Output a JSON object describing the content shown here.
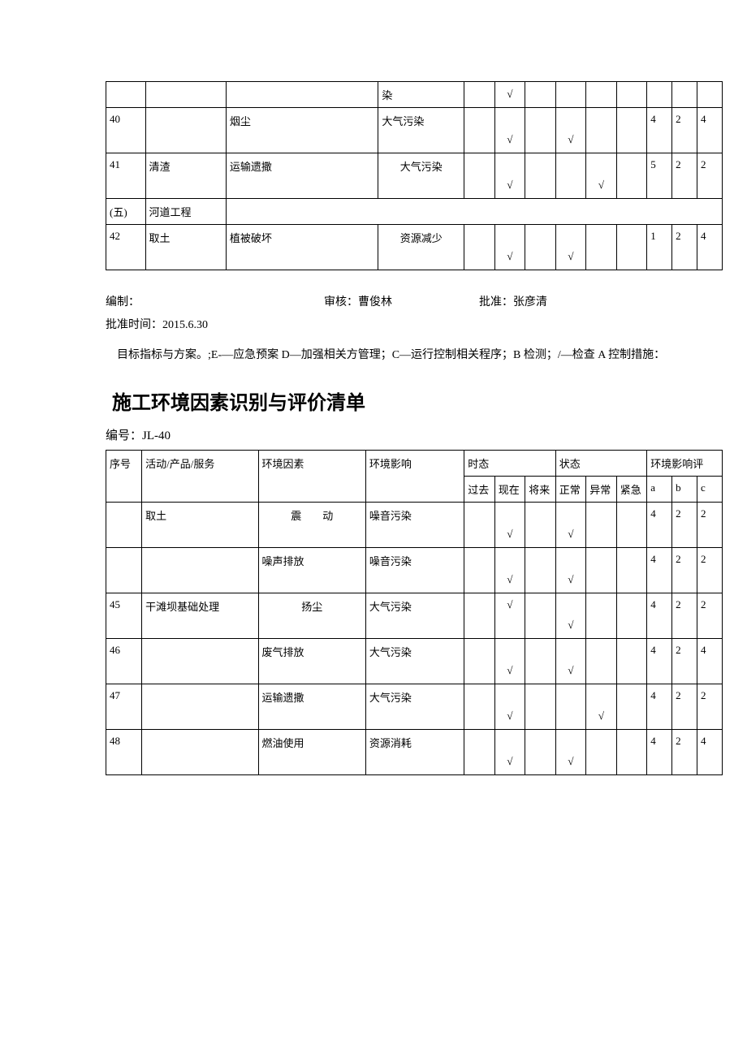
{
  "table1": {
    "rows": [
      {
        "seq": "",
        "act": "",
        "factor": "",
        "impact": "染",
        "t1": "",
        "t2": "√",
        "t3": "",
        "s1": "",
        "s2": "",
        "s3": "",
        "a": "",
        "b": "",
        "c": ""
      },
      {
        "seq": "40",
        "act": "",
        "factor": "烟尘",
        "impact": "大气污染",
        "t1": "",
        "t2": "√",
        "t3": "",
        "s1": "√",
        "s2": "",
        "s3": "",
        "a": "4",
        "b": "2",
        "c": "4"
      },
      {
        "seq": "41",
        "act": "清渣",
        "factor": "运输遗撒",
        "impact": "大气污染",
        "t1": "",
        "t2": "√",
        "t3": "",
        "s1": "",
        "s2": "√",
        "s3": "",
        "a": "5",
        "b": "2",
        "c": "2"
      },
      {
        "seq": "(五)",
        "act": "河道工程",
        "section": true
      },
      {
        "seq": "42",
        "act": "取土",
        "factor": "植被破坏",
        "impact": "资源减少",
        "t1": "",
        "t2": "√",
        "t3": "",
        "s1": "√",
        "s2": "",
        "s3": "",
        "a": "1",
        "b": "2",
        "c": "4"
      }
    ]
  },
  "meta": {
    "bianzhi_label": "编制：",
    "shenhe_label": "审核：",
    "shenhe_val": "曹俊林",
    "pizhun_label": "批准：",
    "pizhun_val": "张彦清",
    "time_label": "批准时间：",
    "time_val": "2015.6.30"
  },
  "note": "目标指标与方案。;E-—应急预案 D—加强相关方管理；C—运行控制相关程序；B 检测；/—检查 A 控制措施：",
  "title": "施工环境因素识别与评价清单",
  "subno_label": "编号：",
  "subno_val": "JL-40",
  "table2": {
    "head": {
      "seq": "序号",
      "act": "活动/产品/服务",
      "factor": "环境因素",
      "impact": "环境影响",
      "time": "时态",
      "state": "状态",
      "eval": "环境影响评"
    },
    "sub": {
      "t1": "过去",
      "t2": "现在",
      "t3": "将来",
      "s1": "正常",
      "s2": "异常",
      "s3": "紧急",
      "a": "a",
      "b": "b",
      "c": "c"
    },
    "rows": [
      {
        "seq": "",
        "act": "取土",
        "factor": "震　　动",
        "impact": "噪音污染",
        "t1": "",
        "t2": "√",
        "t3": "",
        "s1": "√",
        "s2": "",
        "s3": "",
        "a": "4",
        "b": "2",
        "c": "2"
      },
      {
        "seq": "",
        "act": "",
        "factor": "噪声排放",
        "impact": "噪音污染",
        "t1": "",
        "t2": "√",
        "t3": "",
        "s1": "√",
        "s2": "",
        "s3": "",
        "a": "4",
        "b": "2",
        "c": "2"
      },
      {
        "seq": "45",
        "act": "干滩坝基础处理",
        "factor": "扬尘",
        "impact": "大气污染",
        "t1": "",
        "t2": "√",
        "t3": "",
        "s1": "√",
        "s2": "",
        "s3": "",
        "a": "4",
        "b": "2",
        "c": "2"
      },
      {
        "seq": "46",
        "act": "",
        "factor": "废气排放",
        "impact": "大气污染",
        "t1": "",
        "t2": "√",
        "t3": "",
        "s1": "√",
        "s2": "",
        "s3": "",
        "a": "4",
        "b": "2",
        "c": "4"
      },
      {
        "seq": "47",
        "act": "",
        "factor": "运输遗撒",
        "impact": "大气污染",
        "t1": "",
        "t2": "√",
        "t3": "",
        "s1": "",
        "s2": "√",
        "s3": "",
        "a": "4",
        "b": "2",
        "c": "2"
      },
      {
        "seq": "48",
        "act": "",
        "factor": "燃油使用",
        "impact": "资源消耗",
        "t1": "",
        "t2": "√",
        "t3": "",
        "s1": "√",
        "s2": "",
        "s3": "",
        "a": "4",
        "b": "2",
        "c": "4"
      }
    ]
  }
}
